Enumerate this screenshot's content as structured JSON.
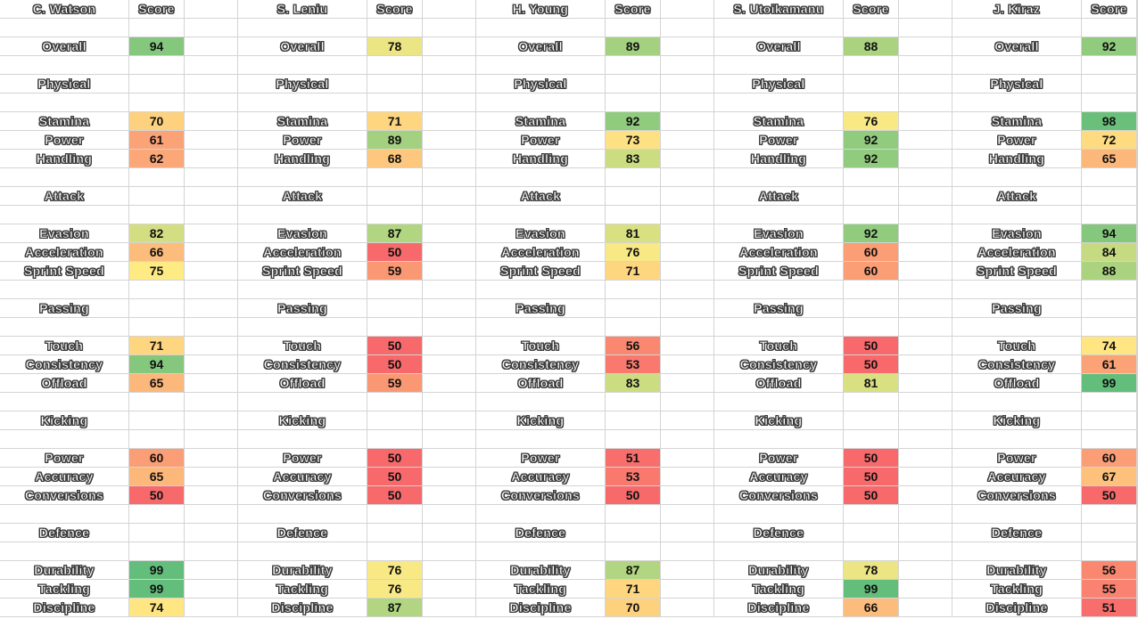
{
  "score_header": "Score",
  "overall_label": "Overall",
  "players": [
    {
      "name": "C. Watson",
      "overall": 94,
      "sections": [
        {
          "title": "Physical",
          "stats": [
            {
              "label": "Stamina",
              "value": 70
            },
            {
              "label": "Power",
              "value": 61
            },
            {
              "label": "Handling",
              "value": 62
            }
          ]
        },
        {
          "title": "Attack",
          "stats": [
            {
              "label": "Evasion",
              "value": 82
            },
            {
              "label": "Acceleration",
              "value": 66
            },
            {
              "label": "Sprint Speed",
              "value": 75
            }
          ]
        },
        {
          "title": "Passing",
          "stats": [
            {
              "label": "Touch",
              "value": 71
            },
            {
              "label": "Consistency",
              "value": 94
            },
            {
              "label": "Offload",
              "value": 65
            }
          ]
        },
        {
          "title": "Kicking",
          "stats": [
            {
              "label": "Power",
              "value": 60
            },
            {
              "label": "Accuracy",
              "value": 65
            },
            {
              "label": "Conversions",
              "value": 50
            }
          ]
        },
        {
          "title": "Defence",
          "stats": [
            {
              "label": "Durability",
              "value": 99
            },
            {
              "label": "Tackling",
              "value": 99
            },
            {
              "label": "Discipline",
              "value": 74
            }
          ]
        }
      ]
    },
    {
      "name": "S. Leniu",
      "overall": 78,
      "sections": [
        {
          "title": "Physical",
          "stats": [
            {
              "label": "Stamina",
              "value": 71
            },
            {
              "label": "Power",
              "value": 89
            },
            {
              "label": "Handling",
              "value": 68
            }
          ]
        },
        {
          "title": "Attack",
          "stats": [
            {
              "label": "Evasion",
              "value": 87
            },
            {
              "label": "Acceleration",
              "value": 50
            },
            {
              "label": "Sprint Speed",
              "value": 59
            }
          ]
        },
        {
          "title": "Passing",
          "stats": [
            {
              "label": "Touch",
              "value": 50
            },
            {
              "label": "Consistency",
              "value": 50
            },
            {
              "label": "Offload",
              "value": 59
            }
          ]
        },
        {
          "title": "Kicking",
          "stats": [
            {
              "label": "Power",
              "value": 50
            },
            {
              "label": "Accuracy",
              "value": 50
            },
            {
              "label": "Conversions",
              "value": 50
            }
          ]
        },
        {
          "title": "Defence",
          "stats": [
            {
              "label": "Durability",
              "value": 76
            },
            {
              "label": "Tackling",
              "value": 76
            },
            {
              "label": "Discipline",
              "value": 87
            }
          ]
        }
      ]
    },
    {
      "name": "H. Young",
      "overall": 89,
      "sections": [
        {
          "title": "Physical",
          "stats": [
            {
              "label": "Stamina",
              "value": 92
            },
            {
              "label": "Power",
              "value": 73
            },
            {
              "label": "Handling",
              "value": 83
            }
          ]
        },
        {
          "title": "Attack",
          "stats": [
            {
              "label": "Evasion",
              "value": 81
            },
            {
              "label": "Acceleration",
              "value": 76
            },
            {
              "label": "Sprint Speed",
              "value": 71
            }
          ]
        },
        {
          "title": "Passing",
          "stats": [
            {
              "label": "Touch",
              "value": 56
            },
            {
              "label": "Consistency",
              "value": 53
            },
            {
              "label": "Offload",
              "value": 83
            }
          ]
        },
        {
          "title": "Kicking",
          "stats": [
            {
              "label": "Power",
              "value": 51
            },
            {
              "label": "Accuracy",
              "value": 53
            },
            {
              "label": "Conversions",
              "value": 50
            }
          ]
        },
        {
          "title": "Defence",
          "stats": [
            {
              "label": "Durability",
              "value": 87
            },
            {
              "label": "Tackling",
              "value": 71
            },
            {
              "label": "Discipline",
              "value": 70
            }
          ]
        }
      ]
    },
    {
      "name": "S. Utoikamanu",
      "overall": 88,
      "sections": [
        {
          "title": "Physical",
          "stats": [
            {
              "label": "Stamina",
              "value": 76
            },
            {
              "label": "Power",
              "value": 92
            },
            {
              "label": "Handling",
              "value": 92
            }
          ]
        },
        {
          "title": "Attack",
          "stats": [
            {
              "label": "Evasion",
              "value": 92
            },
            {
              "label": "Acceleration",
              "value": 60
            },
            {
              "label": "Sprint Speed",
              "value": 60
            }
          ]
        },
        {
          "title": "Passing",
          "stats": [
            {
              "label": "Touch",
              "value": 50
            },
            {
              "label": "Consistency",
              "value": 50
            },
            {
              "label": "Offload",
              "value": 81
            }
          ]
        },
        {
          "title": "Kicking",
          "stats": [
            {
              "label": "Power",
              "value": 50
            },
            {
              "label": "Accuracy",
              "value": 50
            },
            {
              "label": "Conversions",
              "value": 50
            }
          ]
        },
        {
          "title": "Defence",
          "stats": [
            {
              "label": "Durability",
              "value": 78
            },
            {
              "label": "Tackling",
              "value": 99
            },
            {
              "label": "Discipline",
              "value": 66
            }
          ]
        }
      ]
    },
    {
      "name": "J. Kiraz",
      "overall": 92,
      "sections": [
        {
          "title": "Physical",
          "stats": [
            {
              "label": "Stamina",
              "value": 98
            },
            {
              "label": "Power",
              "value": 72
            },
            {
              "label": "Handling",
              "value": 65
            }
          ]
        },
        {
          "title": "Attack",
          "stats": [
            {
              "label": "Evasion",
              "value": 94
            },
            {
              "label": "Acceleration",
              "value": 84
            },
            {
              "label": "Sprint Speed",
              "value": 88
            }
          ]
        },
        {
          "title": "Passing",
          "stats": [
            {
              "label": "Touch",
              "value": 74
            },
            {
              "label": "Consistency",
              "value": 61
            },
            {
              "label": "Offload",
              "value": 99
            }
          ]
        },
        {
          "title": "Kicking",
          "stats": [
            {
              "label": "Power",
              "value": 60
            },
            {
              "label": "Accuracy",
              "value": 67
            },
            {
              "label": "Conversions",
              "value": 50
            }
          ]
        },
        {
          "title": "Defence",
          "stats": [
            {
              "label": "Durability",
              "value": 56
            },
            {
              "label": "Tackling",
              "value": 55
            },
            {
              "label": "Discipline",
              "value": 51
            }
          ]
        }
      ]
    }
  ],
  "color_scale": {
    "min": 50,
    "mid": 75,
    "max": 99,
    "low_color": "#f8696b",
    "mid_color": "#ffeb84",
    "high_color": "#63be7b"
  }
}
